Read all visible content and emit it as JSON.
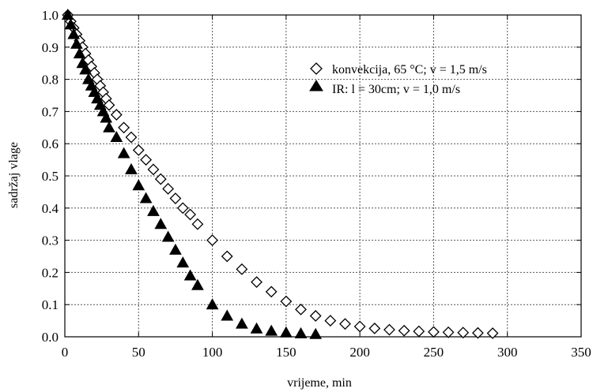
{
  "chart_data": {
    "type": "scatter",
    "title": "",
    "xlabel": "vrijeme, min",
    "ylabel": "sadržaj vlage",
    "xlim": [
      0,
      350
    ],
    "ylim": [
      0,
      1.0
    ],
    "xticks": [
      "0",
      "50",
      "100",
      "150",
      "200",
      "250",
      "300",
      "350"
    ],
    "yticks": [
      "0.0",
      "0.1",
      "0.2",
      "0.3",
      "0.4",
      "0.5",
      "0.6",
      "0.7",
      "0.8",
      "0.9",
      "1.0"
    ],
    "grid": true,
    "legend_position": "top-right",
    "series": [
      {
        "name": "konvekcija, 65 °C; v = 1,5 m/s",
        "marker": "diamond-open",
        "color": "#000000",
        "points": [
          [
            2,
            1.0
          ],
          [
            4,
            0.98
          ],
          [
            6,
            0.96
          ],
          [
            8,
            0.94
          ],
          [
            10,
            0.92
          ],
          [
            12,
            0.9
          ],
          [
            14,
            0.88
          ],
          [
            16,
            0.86
          ],
          [
            18,
            0.84
          ],
          [
            20,
            0.82
          ],
          [
            22,
            0.8
          ],
          [
            24,
            0.78
          ],
          [
            26,
            0.76
          ],
          [
            28,
            0.74
          ],
          [
            30,
            0.72
          ],
          [
            35,
            0.69
          ],
          [
            40,
            0.65
          ],
          [
            45,
            0.62
          ],
          [
            50,
            0.58
          ],
          [
            55,
            0.55
          ],
          [
            60,
            0.52
          ],
          [
            65,
            0.49
          ],
          [
            70,
            0.46
          ],
          [
            75,
            0.43
          ],
          [
            80,
            0.4
          ],
          [
            85,
            0.38
          ],
          [
            90,
            0.35
          ],
          [
            100,
            0.3
          ],
          [
            110,
            0.25
          ],
          [
            120,
            0.21
          ],
          [
            130,
            0.17
          ],
          [
            140,
            0.14
          ],
          [
            150,
            0.11
          ],
          [
            160,
            0.085
          ],
          [
            170,
            0.065
          ],
          [
            180,
            0.05
          ],
          [
            190,
            0.04
          ],
          [
            200,
            0.032
          ],
          [
            210,
            0.026
          ],
          [
            220,
            0.022
          ],
          [
            230,
            0.019
          ],
          [
            240,
            0.017
          ],
          [
            250,
            0.015
          ],
          [
            260,
            0.014
          ],
          [
            270,
            0.013
          ],
          [
            280,
            0.012
          ],
          [
            290,
            0.011
          ]
        ]
      },
      {
        "name": "IR: l = 30cm; v = 1,0 m/s",
        "marker": "triangle-filled",
        "color": "#000000",
        "points": [
          [
            2,
            1.0
          ],
          [
            4,
            0.97
          ],
          [
            6,
            0.94
          ],
          [
            8,
            0.91
          ],
          [
            10,
            0.88
          ],
          [
            12,
            0.85
          ],
          [
            14,
            0.83
          ],
          [
            16,
            0.8
          ],
          [
            18,
            0.78
          ],
          [
            20,
            0.76
          ],
          [
            22,
            0.74
          ],
          [
            24,
            0.72
          ],
          [
            26,
            0.7
          ],
          [
            28,
            0.68
          ],
          [
            30,
            0.65
          ],
          [
            35,
            0.62
          ],
          [
            40,
            0.57
          ],
          [
            45,
            0.52
          ],
          [
            50,
            0.47
          ],
          [
            55,
            0.43
          ],
          [
            60,
            0.39
          ],
          [
            65,
            0.35
          ],
          [
            70,
            0.31
          ],
          [
            75,
            0.27
          ],
          [
            80,
            0.23
          ],
          [
            85,
            0.19
          ],
          [
            90,
            0.16
          ],
          [
            100,
            0.1
          ],
          [
            110,
            0.065
          ],
          [
            120,
            0.04
          ],
          [
            130,
            0.025
          ],
          [
            140,
            0.018
          ],
          [
            150,
            0.013
          ],
          [
            160,
            0.01
          ],
          [
            170,
            0.008
          ]
        ]
      }
    ]
  }
}
